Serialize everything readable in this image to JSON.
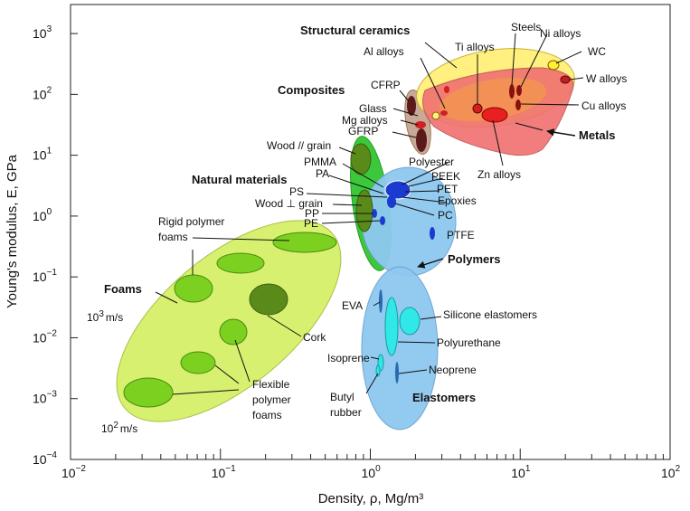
{
  "chart_data": {
    "type": "scatter",
    "x_scale": "log",
    "y_scale": "log",
    "xlabel": "Density, ρ, Mg/m³",
    "ylabel": "Young's modulus, E, GPa",
    "xlim": [
      0.01,
      100
    ],
    "ylim": [
      0.0001,
      3000
    ],
    "x_ticks": [
      {
        "value": 0.01,
        "base": "10",
        "exp": "−2"
      },
      {
        "value": 0.1,
        "base": "10",
        "exp": "−1"
      },
      {
        "value": 1,
        "base": "10",
        "exp": "0"
      },
      {
        "value": 10,
        "base": "10",
        "exp": "1"
      },
      {
        "value": 100,
        "base": "10",
        "exp": "2"
      }
    ],
    "y_ticks": [
      {
        "value": 0.0001,
        "base": "10",
        "exp": "−4"
      },
      {
        "value": 0.001,
        "base": "10",
        "exp": "−3"
      },
      {
        "value": 0.01,
        "base": "10",
        "exp": "−2"
      },
      {
        "value": 0.1,
        "base": "10",
        "exp": "−1"
      },
      {
        "value": 1,
        "base": "10",
        "exp": "0"
      },
      {
        "value": 10,
        "base": "10",
        "exp": "1"
      },
      {
        "value": 100,
        "base": "10",
        "exp": "2"
      },
      {
        "value": 1000,
        "base": "10",
        "exp": "3"
      }
    ],
    "grid": false,
    "guide_lines": [
      {
        "base": "10",
        "exp": "3",
        "unit": "m/s"
      },
      {
        "base": "10",
        "exp": "2",
        "unit": "m/s"
      }
    ],
    "families": [
      {
        "name": "Foams",
        "color": "#d8f070"
      },
      {
        "name": "Natural materials",
        "color": "#3cc83c"
      },
      {
        "name": "Polymers",
        "color": "#8cc8f0"
      },
      {
        "name": "Elastomers",
        "color": "#8cc8f0"
      },
      {
        "name": "Composites",
        "color": "#c8a896"
      },
      {
        "name": "Structural ceramics",
        "color": "#fff080"
      },
      {
        "name": "Metals",
        "color": "#f07070"
      }
    ],
    "materials": [
      {
        "name": "Rigid polymer foams",
        "rho": 0.3,
        "E": 0.45
      },
      {
        "name": "Flexible polymer foams",
        "rho": 0.03,
        "E": 0.0006
      },
      {
        "name": "Cork",
        "rho": 0.18,
        "E": 0.025
      },
      {
        "name": "Wood // grain",
        "rho": 0.7,
        "E": 14
      },
      {
        "name": "Wood ⊥ grain",
        "rho": 0.7,
        "E": 1
      },
      {
        "name": "PMMA",
        "rho": 1.2,
        "E": 3
      },
      {
        "name": "PA",
        "rho": 1.1,
        "E": 2.5
      },
      {
        "name": "PS",
        "rho": 1.05,
        "E": 2.5
      },
      {
        "name": "PP",
        "rho": 0.9,
        "E": 1.3
      },
      {
        "name": "PE",
        "rho": 0.95,
        "E": 0.9
      },
      {
        "name": "Polyester",
        "rho": 1.3,
        "E": 3
      },
      {
        "name": "PEEK",
        "rho": 1.3,
        "E": 3.8
      },
      {
        "name": "PET",
        "rho": 1.4,
        "E": 3
      },
      {
        "name": "Epoxies",
        "rho": 1.2,
        "E": 2.8
      },
      {
        "name": "PC",
        "rho": 1.2,
        "E": 2.2
      },
      {
        "name": "PTFE",
        "rho": 2.2,
        "E": 0.5
      },
      {
        "name": "EVA",
        "rho": 0.95,
        "E": 0.02
      },
      {
        "name": "Silicone elastomers",
        "rho": 1.7,
        "E": 0.012
      },
      {
        "name": "Polyurethane",
        "rho": 1.1,
        "E": 0.01
      },
      {
        "name": "Isoprene",
        "rho": 0.93,
        "E": 0.0015
      },
      {
        "name": "Neoprene",
        "rho": 1.25,
        "E": 0.0008
      },
      {
        "name": "Butyl rubber",
        "rho": 0.9,
        "E": 0.0012
      },
      {
        "name": "CFRP",
        "rho": 1.5,
        "E": 110
      },
      {
        "name": "GFRP",
        "rho": 1.9,
        "E": 30
      },
      {
        "name": "Glass",
        "rho": 2.5,
        "E": 70
      },
      {
        "name": "Mg alloys",
        "rho": 1.8,
        "E": 45
      },
      {
        "name": "Al alloys",
        "rho": 2.7,
        "E": 72
      },
      {
        "name": "Ti alloys",
        "rho": 4.5,
        "E": 110
      },
      {
        "name": "Steels",
        "rho": 7.8,
        "E": 205
      },
      {
        "name": "Ni alloys",
        "rho": 8.5,
        "E": 200
      },
      {
        "name": "WC",
        "rho": 15.6,
        "E": 650
      },
      {
        "name": "W alloys",
        "rho": 19,
        "E": 380
      },
      {
        "name": "Cu alloys",
        "rho": 8.9,
        "E": 125
      },
      {
        "name": "Zn alloys",
        "rho": 6,
        "E": 100
      }
    ],
    "labels": [
      "Structural ceramics",
      "Al alloys",
      "Ti alloys",
      "Steels",
      "Ni alloys",
      "WC",
      "W alloys",
      "Composites",
      "CFRP",
      "Glass",
      "Mg alloys",
      "GFRP",
      "Cu alloys",
      "Metals",
      "Zn alloys",
      "Wood // grain",
      "PMMA",
      "PA",
      "Natural materials",
      "Polyester",
      "PEEK",
      "PET",
      "PS",
      "Epoxies",
      "Wood ⊥ grain",
      "PC",
      "PP",
      "PE",
      "PTFE",
      "Rigid polymer",
      "foams",
      "Polymers",
      "Foams",
      "EVA",
      "Silicone elastomers",
      "Cork",
      "Polyurethane",
      "Isoprene",
      "Neoprene",
      "Flexible",
      "polymer",
      "foams",
      "Butyl",
      "rubber",
      "Elastomers"
    ]
  }
}
